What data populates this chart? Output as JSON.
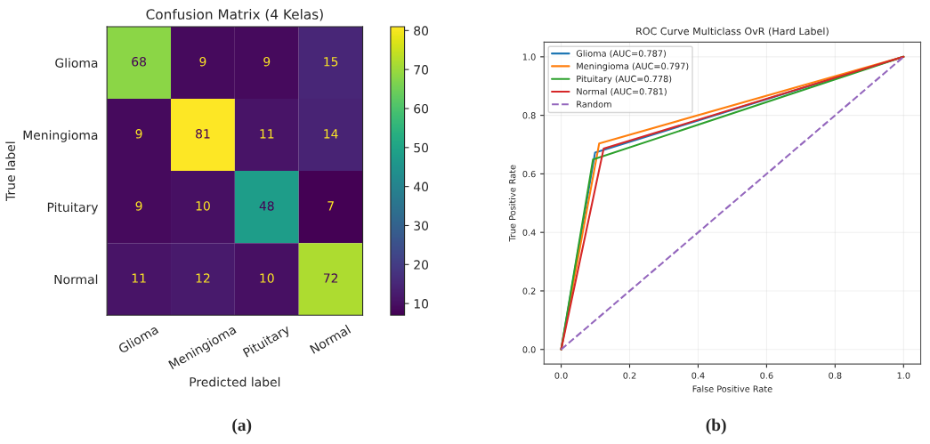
{
  "chart_data": [
    {
      "type": "heatmap",
      "title": "Confusion Matrix (4 Kelas)",
      "xlabel": "Predicted label",
      "ylabel": "True label",
      "categories": [
        "Glioma",
        "Meningioma",
        "Pituitary",
        "Normal"
      ],
      "y_categories": [
        "Glioma",
        "Meningioma",
        "Pituitary",
        "Normal"
      ],
      "cells": [
        [
          68,
          9,
          9,
          15
        ],
        [
          9,
          81,
          11,
          14
        ],
        [
          9,
          10,
          48,
          7
        ],
        [
          11,
          12,
          10,
          72
        ]
      ],
      "data_labels": true,
      "clim": [
        7,
        81
      ],
      "cticks": [
        10,
        20,
        30,
        40,
        50,
        60,
        70,
        80
      ],
      "annotations": [
        "(a)"
      ]
    },
    {
      "type": "line",
      "title": "ROC Curve Multiclass OvR (Hard Label)",
      "xlabel": "False Positive Rate",
      "ylabel": "True Positive Rate",
      "series": [
        {
          "name": "Glioma (AUC=0.787)",
          "color": "#1f77b4",
          "x": [
            0,
            0.099,
            1
          ],
          "values": [
            0,
            0.673,
            1
          ]
        },
        {
          "name": "Meningioma (AUC=0.797)",
          "color": "#ff7f0e",
          "x": [
            0,
            0.111,
            1
          ],
          "values": [
            0,
            0.704,
            1
          ]
        },
        {
          "name": "Pituitary (AUC=0.778)",
          "color": "#2ca02c",
          "x": [
            0,
            0.093,
            1
          ],
          "values": [
            0,
            0.649,
            1
          ]
        },
        {
          "name": "Normal (AUC=0.781)",
          "color": "#d62728",
          "x": [
            0,
            0.124,
            1
          ],
          "values": [
            0,
            0.686,
            1
          ]
        },
        {
          "name": "Random",
          "color": "#9467bd",
          "x": [
            0,
            1
          ],
          "values": [
            0,
            1
          ],
          "line_style": "dashed"
        }
      ],
      "xlim": [
        -0.05,
        1.05
      ],
      "ylim": [
        -0.05,
        1.05
      ],
      "xticks": [
        {
          "value": 0,
          "label": "0.0"
        },
        0.2,
        0.4,
        0.6,
        0.8,
        {
          "value": 1,
          "label": "1.0"
        }
      ],
      "yticks": [
        {
          "value": 0,
          "label": "0.0"
        },
        0.2,
        0.4,
        0.6,
        0.8,
        {
          "value": 1,
          "label": "1.0"
        }
      ],
      "grid": true,
      "legend": "top left",
      "marker": "none",
      "annotations": [
        "(b)"
      ]
    }
  ]
}
